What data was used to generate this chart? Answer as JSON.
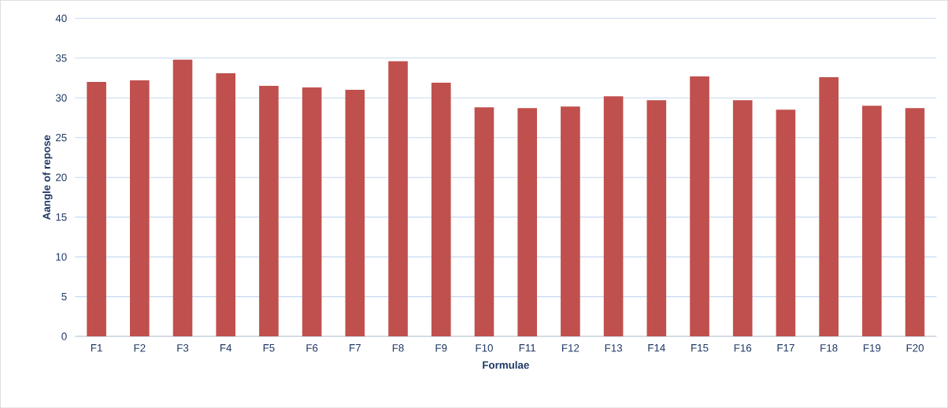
{
  "chart_data": {
    "type": "bar",
    "xlabel": "Formulae",
    "ylabel": "Aangle of repose",
    "categories": [
      "F1",
      "F2",
      "F3",
      "F4",
      "F5",
      "F6",
      "F7",
      "F8",
      "F9",
      "F10",
      "F11",
      "F12",
      "F13",
      "F14",
      "F15",
      "F16",
      "F17",
      "F18",
      "F19",
      "F20"
    ],
    "values": [
      32.0,
      32.2,
      34.8,
      33.1,
      31.5,
      31.3,
      31.0,
      34.6,
      31.9,
      28.8,
      28.7,
      28.9,
      30.2,
      29.7,
      32.7,
      29.7,
      28.5,
      32.6,
      29.0,
      28.7
    ],
    "color": "#c0504d",
    "ylim": [
      0,
      40
    ],
    "yticks": [
      0,
      5,
      10,
      15,
      20,
      25,
      30,
      35,
      40
    ],
    "grid": "y"
  }
}
